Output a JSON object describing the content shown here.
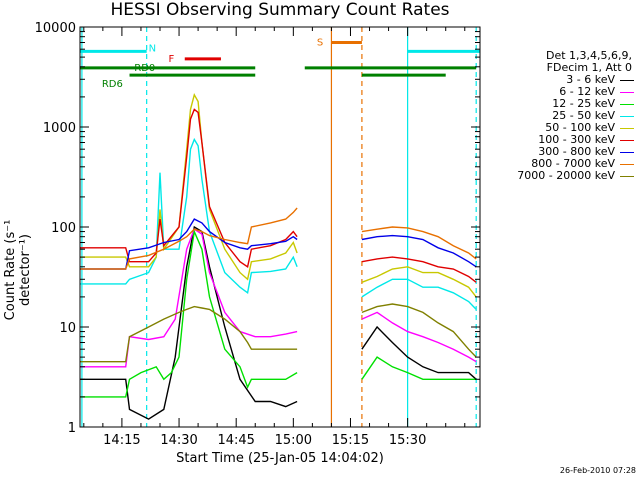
{
  "title": "HESSI Observing Summary Count Rates",
  "footer_timestamp": "26-Feb-2010 07:28",
  "chart_data": {
    "type": "line",
    "title": "HESSI Observing Summary Count Rates",
    "xlabel": "Start Time (25-Jan-05 14:04:02)",
    "ylabel": "Count Rate (s⁻¹ detector⁻¹)",
    "yscale": "log",
    "ylim": [
      1,
      10000
    ],
    "xlim_minutes_after_start": [
      0,
      105
    ],
    "x_tick_labels": [
      "14:15",
      "14:30",
      "14:45",
      "15:00",
      "15:15",
      "15:30"
    ],
    "x_tick_minutes": [
      11,
      26,
      41,
      56,
      71,
      86
    ],
    "y_tick_labels": [
      "1",
      "10",
      "100",
      "1000",
      "10000"
    ],
    "y_ticks": [
      1,
      10,
      100,
      1000,
      10000
    ],
    "grid": false,
    "legend_position": "right",
    "legend_header": [
      "Det 1,3,4,5,6,9,",
      "FDecim 1, Att 0"
    ],
    "series": [
      {
        "name": "3 - 6 keV",
        "color": "#000000",
        "x": [
          0,
          12,
          13,
          18,
          22,
          25,
          28,
          30,
          32,
          34,
          38,
          42,
          46,
          50,
          54,
          57,
          58,
          74,
          78,
          82,
          86,
          90,
          94,
          98,
          102,
          104
        ],
        "y": [
          3,
          3,
          1.5,
          1.2,
          1.5,
          5,
          40,
          100,
          90,
          40,
          10,
          3,
          1.8,
          1.8,
          1.6,
          1.8,
          null,
          6,
          10,
          7,
          5,
          4,
          3.5,
          3.5,
          3.5,
          3
        ]
      },
      {
        "name": "6 - 12 keV",
        "color": "#ff00ff",
        "x": [
          0,
          12,
          13,
          18,
          22,
          25,
          28,
          30,
          32,
          34,
          38,
          42,
          46,
          50,
          54,
          57,
          58,
          74,
          78,
          82,
          86,
          90,
          94,
          98,
          102,
          104
        ],
        "y": [
          4,
          4,
          8,
          7.5,
          8,
          12,
          60,
          95,
          85,
          35,
          14,
          9,
          8,
          8,
          8.5,
          9,
          null,
          12,
          14,
          11,
          9,
          8,
          7,
          6,
          5,
          4.5
        ]
      },
      {
        "name": "12 - 25 keV",
        "color": "#00e000",
        "x": [
          0,
          12,
          13,
          16,
          20,
          22,
          24,
          26,
          28,
          30,
          32,
          34,
          38,
          42,
          44,
          45,
          50,
          54,
          57,
          58,
          74,
          78,
          82,
          86,
          90,
          94,
          98,
          102,
          104
        ],
        "y": [
          2,
          2,
          3,
          3.5,
          4,
          3,
          3.5,
          5,
          30,
          90,
          60,
          20,
          6,
          4,
          2.5,
          3,
          3,
          3,
          3.5,
          null,
          3,
          5,
          4,
          3.5,
          3,
          3,
          3,
          3,
          3
        ]
      },
      {
        "name": "25 - 50 keV",
        "color": "#00e8e8",
        "x": [
          0,
          12,
          13,
          18,
          20,
          21,
          22,
          26,
          28,
          29,
          30,
          31,
          32,
          34,
          38,
          42,
          44,
          45,
          50,
          54,
          56,
          57,
          58,
          74,
          78,
          82,
          86,
          90,
          94,
          98,
          102,
          104
        ],
        "y": [
          27,
          27,
          30,
          35,
          50,
          350,
          60,
          60,
          200,
          600,
          750,
          650,
          300,
          90,
          35,
          25,
          22,
          35,
          36,
          38,
          50,
          40,
          null,
          20,
          25,
          30,
          30,
          25,
          25,
          22,
          18,
          15
        ]
      },
      {
        "name": "50 - 100 keV",
        "color": "#c8c800",
        "x": [
          0,
          12,
          13,
          18,
          20,
          21,
          22,
          26,
          28,
          29,
          30,
          31,
          32,
          34,
          38,
          42,
          44,
          45,
          50,
          54,
          56,
          57,
          58,
          74,
          78,
          82,
          86,
          90,
          94,
          98,
          102,
          104
        ],
        "y": [
          50,
          50,
          40,
          40,
          50,
          150,
          60,
          100,
          600,
          1500,
          2100,
          1800,
          700,
          150,
          60,
          35,
          30,
          45,
          48,
          55,
          70,
          55,
          null,
          28,
          32,
          38,
          40,
          35,
          35,
          30,
          25,
          20
        ]
      },
      {
        "name": "100 - 300 keV",
        "color": "#e00000",
        "x": [
          0,
          12,
          13,
          18,
          20,
          21,
          22,
          26,
          28,
          29,
          30,
          31,
          32,
          34,
          38,
          42,
          44,
          45,
          50,
          54,
          56,
          57,
          58,
          74,
          78,
          82,
          86,
          90,
          94,
          98,
          102,
          104
        ],
        "y": [
          62,
          62,
          45,
          45,
          55,
          120,
          65,
          100,
          500,
          1200,
          1500,
          1400,
          700,
          160,
          70,
          45,
          40,
          60,
          65,
          75,
          90,
          80,
          null,
          45,
          48,
          50,
          48,
          45,
          40,
          38,
          32,
          28
        ]
      },
      {
        "name": "300 - 800 keV",
        "color": "#0000e8",
        "x": [
          0,
          12,
          13,
          18,
          22,
          26,
          28,
          30,
          32,
          34,
          38,
          42,
          44,
          45,
          50,
          54,
          56,
          57,
          58,
          74,
          78,
          82,
          86,
          90,
          94,
          98,
          102,
          104
        ],
        "y": [
          38,
          38,
          58,
          62,
          70,
          75,
          90,
          120,
          110,
          90,
          70,
          62,
          60,
          65,
          68,
          72,
          80,
          75,
          null,
          75,
          80,
          82,
          80,
          75,
          62,
          55,
          45,
          40
        ]
      },
      {
        "name": "800 - 7000 keV",
        "color": "#e87000",
        "x": [
          0,
          12,
          13,
          18,
          22,
          26,
          28,
          30,
          32,
          34,
          38,
          42,
          44,
          45,
          50,
          54,
          56,
          57,
          58,
          74,
          78,
          82,
          86,
          90,
          94,
          98,
          102,
          104
        ],
        "y": [
          38,
          38,
          48,
          52,
          60,
          72,
          80,
          95,
          90,
          82,
          75,
          70,
          68,
          100,
          110,
          120,
          140,
          155,
          null,
          90,
          95,
          100,
          98,
          90,
          80,
          65,
          55,
          48
        ]
      },
      {
        "name": "7000 - 20000 keV",
        "color": "#808000",
        "x": [
          0,
          12,
          13,
          18,
          22,
          26,
          28,
          30,
          32,
          34,
          38,
          42,
          44,
          45,
          50,
          54,
          57,
          58,
          74,
          78,
          82,
          86,
          90,
          94,
          98,
          102,
          104
        ],
        "y": [
          4.5,
          4.5,
          8,
          10,
          12,
          14,
          15,
          16,
          15.5,
          15,
          12,
          9,
          7,
          6,
          6,
          6,
          6,
          null,
          14,
          16,
          17,
          16,
          14,
          11,
          9,
          6,
          5
        ]
      }
    ],
    "flag_bars": [
      {
        "label": "N",
        "color": "#00e8e8",
        "level": 5700,
        "spans": [
          [
            0,
            17.5
          ],
          [
            86,
            105
          ]
        ]
      },
      {
        "label": "F",
        "color": "#e00000",
        "level": 4800,
        "spans": [
          [
            27.5,
            37
          ]
        ]
      },
      {
        "label": "RD0",
        "color": "#008000",
        "level": 3900,
        "spans": [
          [
            0,
            46
          ],
          [
            59,
            104
          ]
        ]
      },
      {
        "label": "RD6",
        "color": "#008000",
        "level": 3300,
        "spans": [
          [
            13,
            46
          ],
          [
            74,
            96
          ]
        ]
      },
      {
        "label": "S",
        "color": "#e87000",
        "level": 7000,
        "spans": [
          [
            66,
            74
          ]
        ]
      }
    ],
    "vertical_lines": [
      {
        "minute": 0.5,
        "color": "#00e8e8",
        "style": "solid"
      },
      {
        "minute": 17.5,
        "color": "#00e8e8",
        "style": "dashed"
      },
      {
        "minute": 66,
        "color": "#e87000",
        "style": "solid"
      },
      {
        "minute": 74,
        "color": "#e87000",
        "style": "dashed"
      },
      {
        "minute": 86,
        "color": "#00e8e8",
        "style": "solid"
      },
      {
        "minute": 104,
        "color": "#00e8e8",
        "style": "dashed"
      }
    ]
  }
}
